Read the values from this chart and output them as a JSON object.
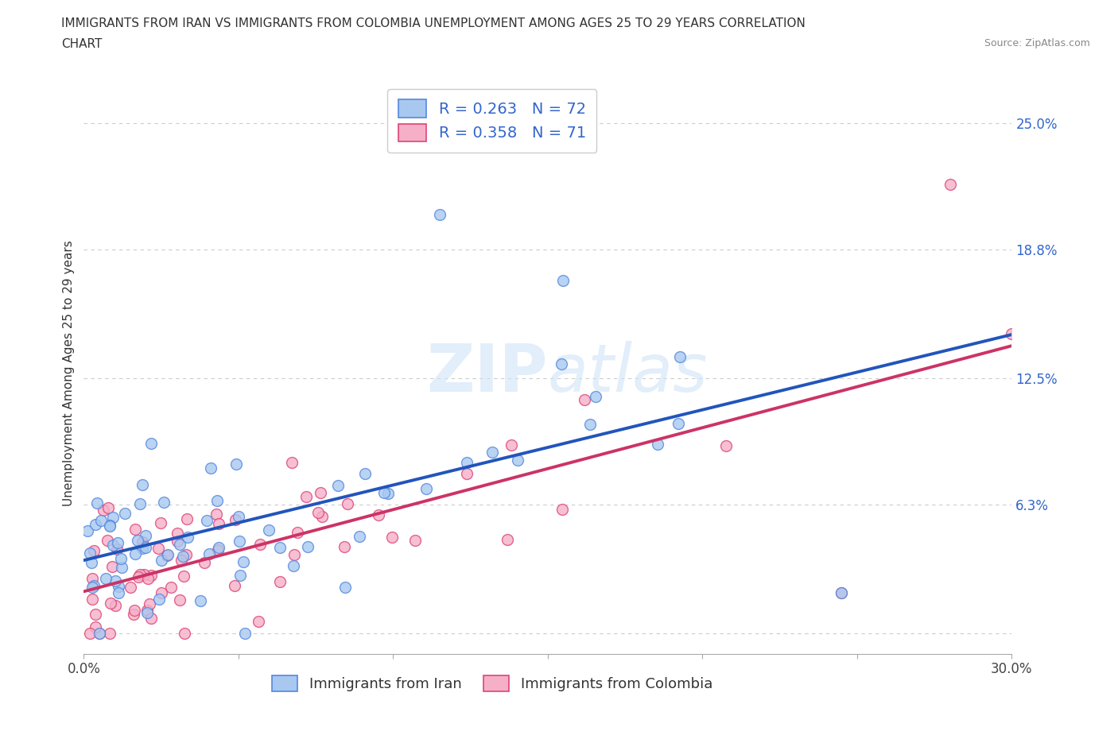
{
  "title_line1": "IMMIGRANTS FROM IRAN VS IMMIGRANTS FROM COLOMBIA UNEMPLOYMENT AMONG AGES 25 TO 29 YEARS CORRELATION",
  "title_line2": "CHART",
  "source": "Source: ZipAtlas.com",
  "ylabel": "Unemployment Among Ages 25 to 29 years",
  "xmin": 0.0,
  "xmax": 0.3,
  "ymin": -0.01,
  "ymax": 0.265,
  "iran_color": "#a8c8f0",
  "iran_edge_color": "#5588dd",
  "colombia_color": "#f5b0c8",
  "colombia_edge_color": "#dd4477",
  "iran_line_color": "#2255bb",
  "colombia_line_color": "#cc3366",
  "text_color_blue": "#3366cc",
  "iran_R": 0.263,
  "iran_N": 72,
  "colombia_R": 0.358,
  "colombia_N": 71,
  "watermark": "ZIPatlas",
  "legend_label_iran": "Immigrants from Iran",
  "legend_label_colombia": "Immigrants from Colombia",
  "y_tick_values": [
    0.0,
    0.063,
    0.125,
    0.188,
    0.25
  ],
  "y_tick_labels": [
    "",
    "6.3%",
    "12.5%",
    "18.8%",
    "25.0%"
  ],
  "title_fontsize": 11,
  "legend_fontsize": 14,
  "axis_label_fontsize": 11,
  "tick_fontsize": 12
}
